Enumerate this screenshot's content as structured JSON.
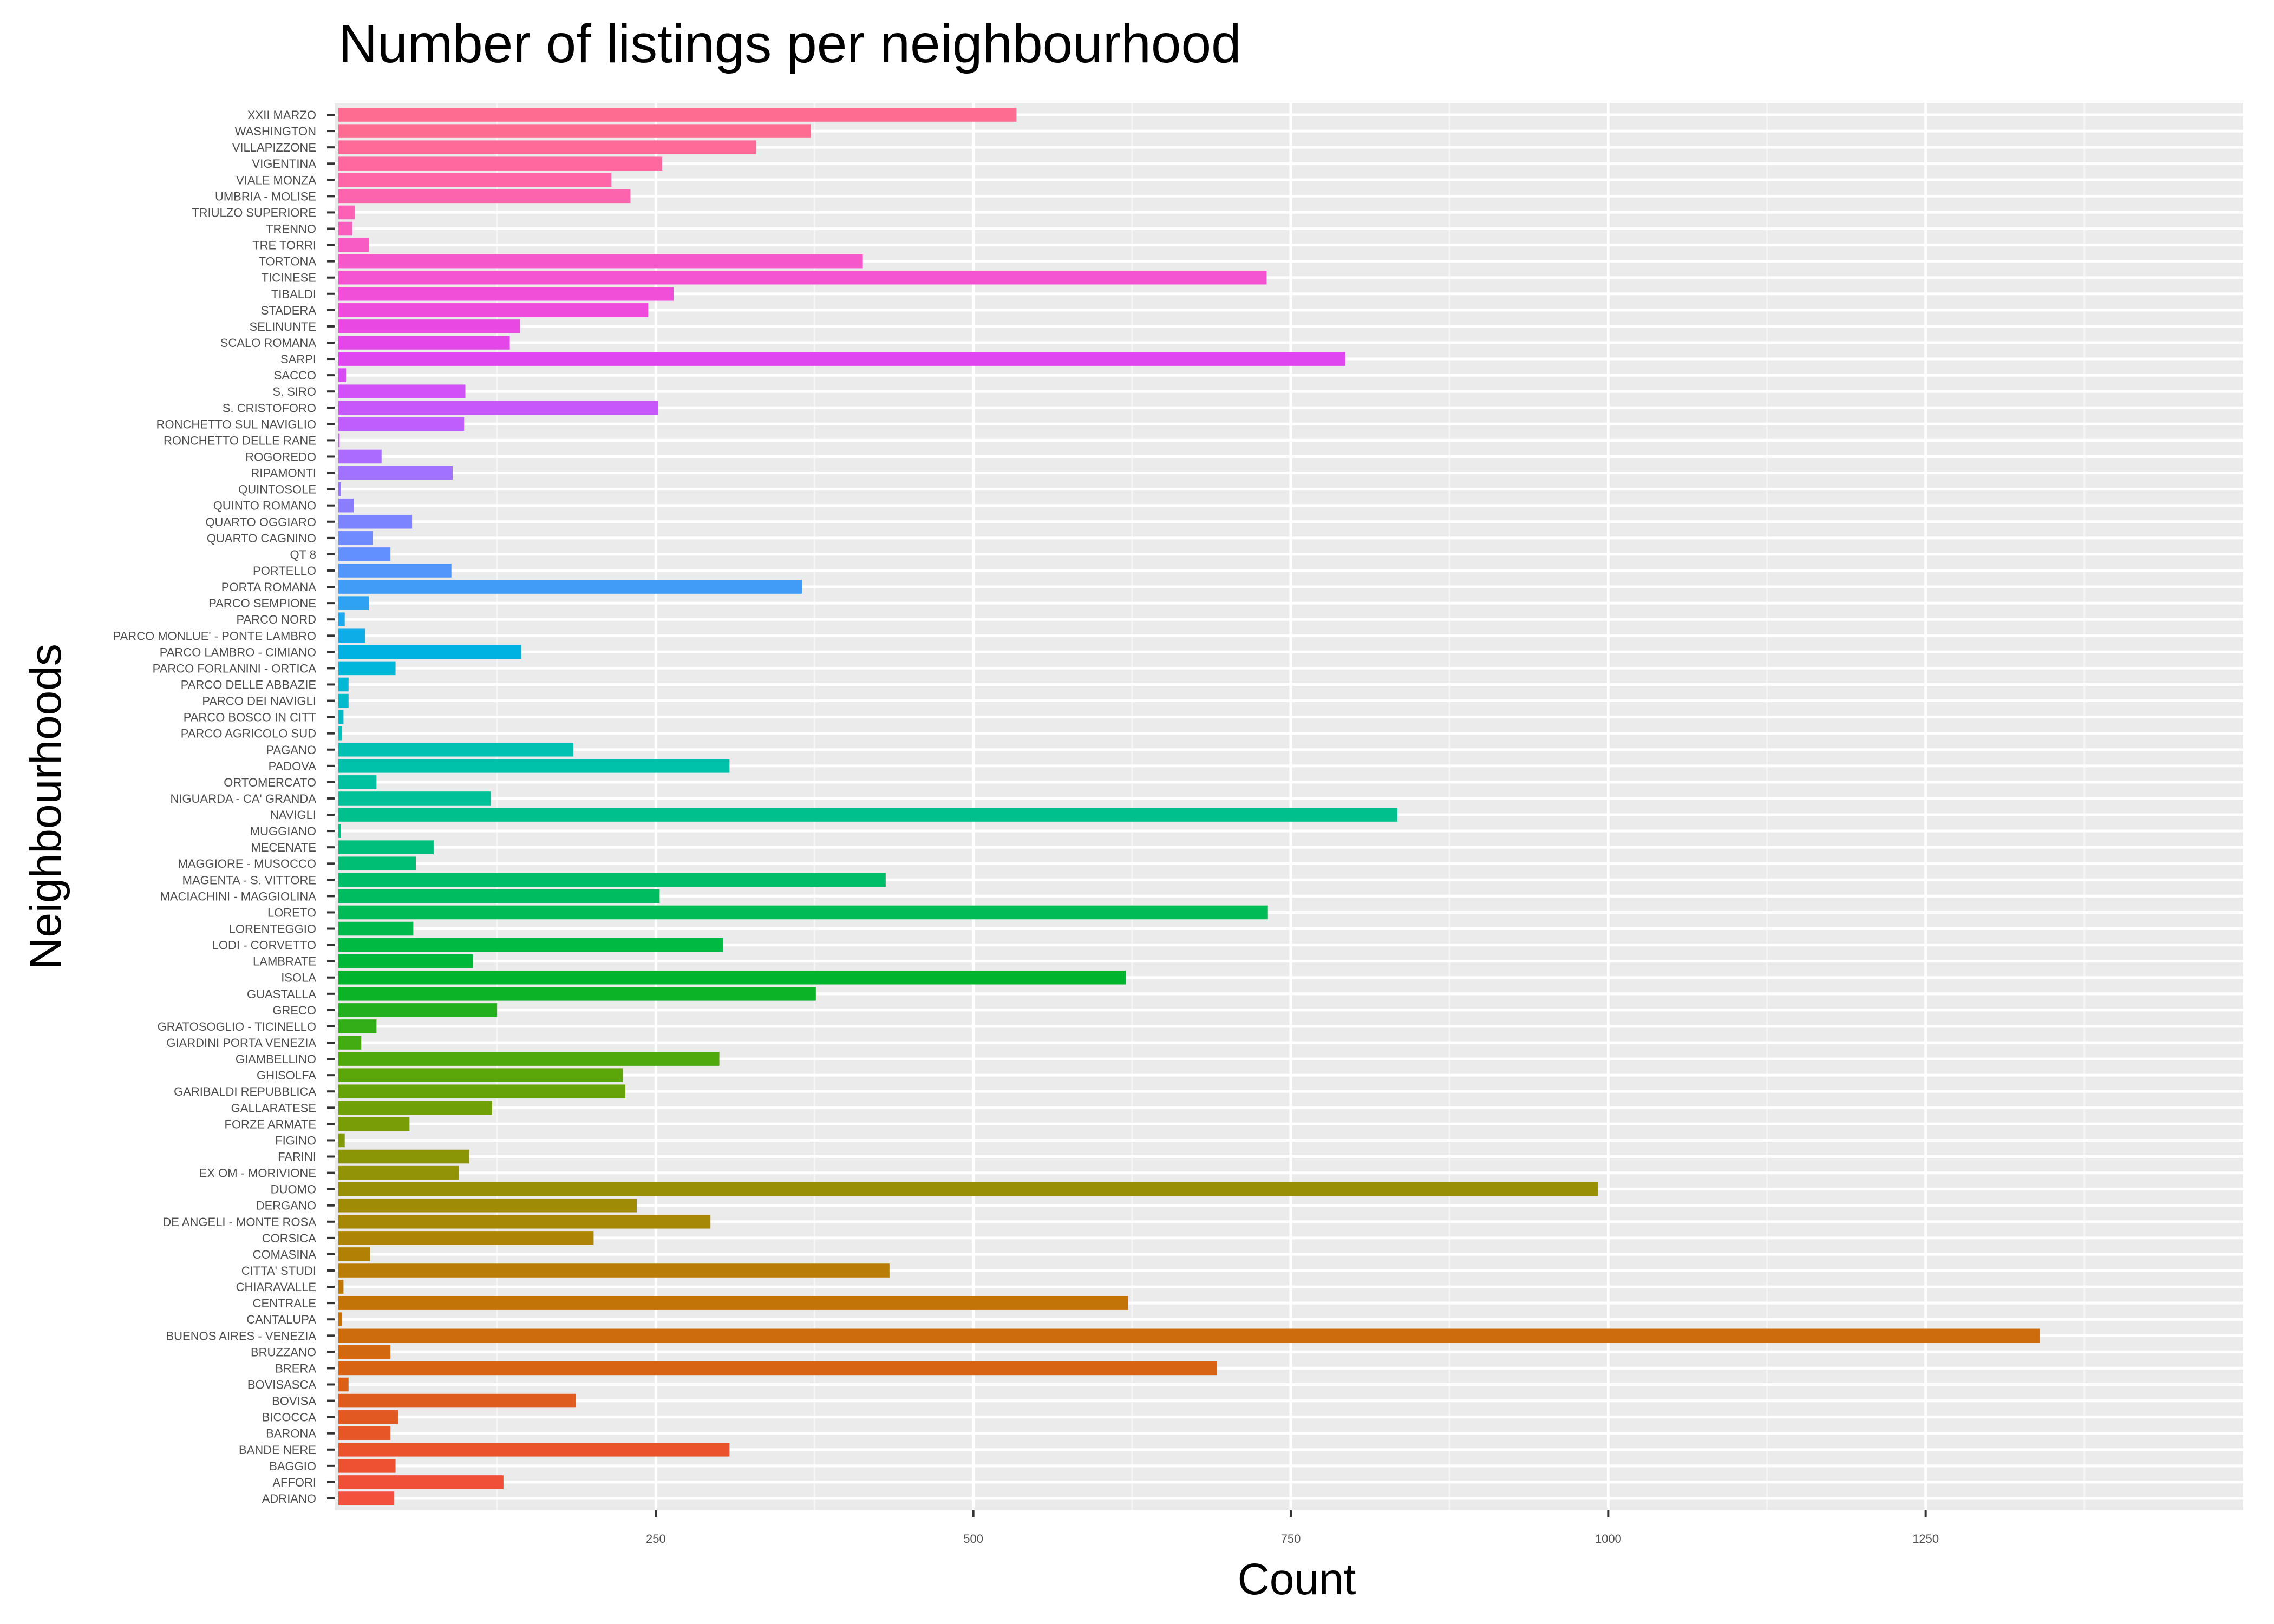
{
  "chart_data": {
    "type": "bar",
    "orientation": "horizontal",
    "title": "Number of listings per neighbourhood",
    "xlabel": "Count",
    "ylabel": "Neighbourhoods",
    "xlim": [
      0,
      1500
    ],
    "xticks": [
      250,
      500,
      750,
      1000,
      1250
    ],
    "grid": true,
    "legend": "none",
    "categories": [
      "XXII MARZO",
      "WASHINGTON",
      "VILLAPIZZONE",
      "VIGENTINA",
      "VIALE MONZA",
      "UMBRIA - MOLISE",
      "TRIULZO SUPERIORE",
      "TRENNO",
      "TRE TORRI",
      "TORTONA",
      "TICINESE",
      "TIBALDI",
      "STADERA",
      "SELINUNTE",
      "SCALO ROMANA",
      "SARPI",
      "SACCO",
      "S. SIRO",
      "S. CRISTOFORO",
      "RONCHETTO SUL NAVIGLIO",
      "RONCHETTO DELLE RANE",
      "ROGOREDO",
      "RIPAMONTI",
      "QUINTOSOLE",
      "QUINTO ROMANO",
      "QUARTO OGGIARO",
      "QUARTO CAGNINO",
      "QT 8",
      "PORTELLO",
      "PORTA ROMANA",
      "PARCO SEMPIONE",
      "PARCO NORD",
      "PARCO MONLUE' - PONTE LAMBRO",
      "PARCO LAMBRO - CIMIANO",
      "PARCO FORLANINI - ORTICA",
      "PARCO DELLE ABBAZIE",
      "PARCO DEI NAVIGLI",
      "PARCO BOSCO IN CITT",
      "PARCO AGRICOLO SUD",
      "PAGANO",
      "PADOVA",
      "ORTOMERCATO",
      "NIGUARDA - CA' GRANDA",
      "NAVIGLI",
      "MUGGIANO",
      "MECENATE",
      "MAGGIORE - MUSOCCO",
      "MAGENTA - S. VITTORE",
      "MACIACHINI - MAGGIOLINA",
      "LORETO",
      "LORENTEGGIO",
      "LODI - CORVETTO",
      "LAMBRATE",
      "ISOLA",
      "GUASTALLA",
      "GRECO",
      "GRATOSOGLIO - TICINELLO",
      "GIARDINI PORTA VENEZIA",
      "GIAMBELLINO",
      "GHISOLFA",
      "GARIBALDI REPUBBLICA",
      "GALLARATESE",
      "FORZE ARMATE",
      "FIGINO",
      "FARINI",
      "EX OM - MORIVIONE",
      "DUOMO",
      "DERGANO",
      "DE ANGELI - MONTE ROSA",
      "CORSICA",
      "COMASINA",
      "CITTA' STUDI",
      "CHIARAVALLE",
      "CENTRALE",
      "CANTALUPA",
      "BUENOS AIRES - VENEZIA",
      "BRUZZANO",
      "BRERA",
      "BOVISASCA",
      "BOVISA",
      "BICOCCA",
      "BARONA",
      "BANDE NERE",
      "BAGGIO",
      "AFFORI",
      "ADRIANO"
    ],
    "values": [
      534,
      372,
      329,
      255,
      215,
      230,
      13,
      11,
      24,
      413,
      731,
      264,
      244,
      143,
      135,
      793,
      6,
      100,
      252,
      99,
      1,
      34,
      90,
      2,
      12,
      58,
      27,
      41,
      89,
      365,
      24,
      5,
      21,
      144,
      45,
      8,
      8,
      4,
      3,
      185,
      308,
      30,
      120,
      834,
      2,
      75,
      61,
      431,
      253,
      732,
      59,
      303,
      106,
      620,
      376,
      125,
      30,
      18,
      300,
      224,
      226,
      121,
      56,
      5,
      103,
      95,
      992,
      235,
      293,
      201,
      25,
      434,
      4,
      622,
      3,
      1340,
      41,
      692,
      8,
      187,
      47,
      41,
      308,
      45,
      130,
      44
    ],
    "colors": [
      "#FF6C91",
      "#FF6C91",
      "#FF6A98",
      "#FF689F",
      "#FF66A7",
      "#FD64AE",
      "#FC61B5",
      "#FA5EBC",
      "#F85BC3",
      "#F657CA",
      "#F453D1",
      "#F14FD7",
      "#EE4BDD",
      "#EA48E3",
      "#E446E9",
      "#DF46EF",
      "#D84AF3",
      "#D150F7",
      "#C857FB",
      "#BF5EFD",
      "#B665FF",
      "#AC6BFF",
      "#A172FF",
      "#9678FF",
      "#8A7EFF",
      "#7D84FF",
      "#708AFF",
      "#6290FE",
      "#5296FB",
      "#419CF8",
      "#2FA2F3",
      "#1EA8EE",
      "#0DADE8",
      "#00B2E2",
      "#00B6DB",
      "#00B9D3",
      "#00BCCB",
      "#00BEC3",
      "#00C0BA",
      "#00C1B2",
      "#00C1A9",
      "#00C1A0",
      "#00C197",
      "#00C18E",
      "#00C085",
      "#00BF7C",
      "#00BE73",
      "#00BD6A",
      "#00BC60",
      "#00BB56",
      "#00BA4C",
      "#00B942",
      "#00B838",
      "#00B52E",
      "#0CB326",
      "#22B01F",
      "#33AE18",
      "#42AC12",
      "#4FA90D",
      "#5BA70A",
      "#66A308",
      "#70A007",
      "#799D06",
      "#829906",
      "#8A9606",
      "#929306",
      "#998F06",
      "#A08B06",
      "#A78806",
      "#AD8406",
      "#B38006",
      "#B97C06",
      "#BE7807",
      "#C37408",
      "#C8700A",
      "#CD6C0D",
      "#D26810",
      "#D66414",
      "#DA6018",
      "#DE5C1D",
      "#E25922",
      "#E65627",
      "#EA532C",
      "#ED5132",
      "#F05038",
      "#F3503E",
      "#F8766D"
    ]
  }
}
